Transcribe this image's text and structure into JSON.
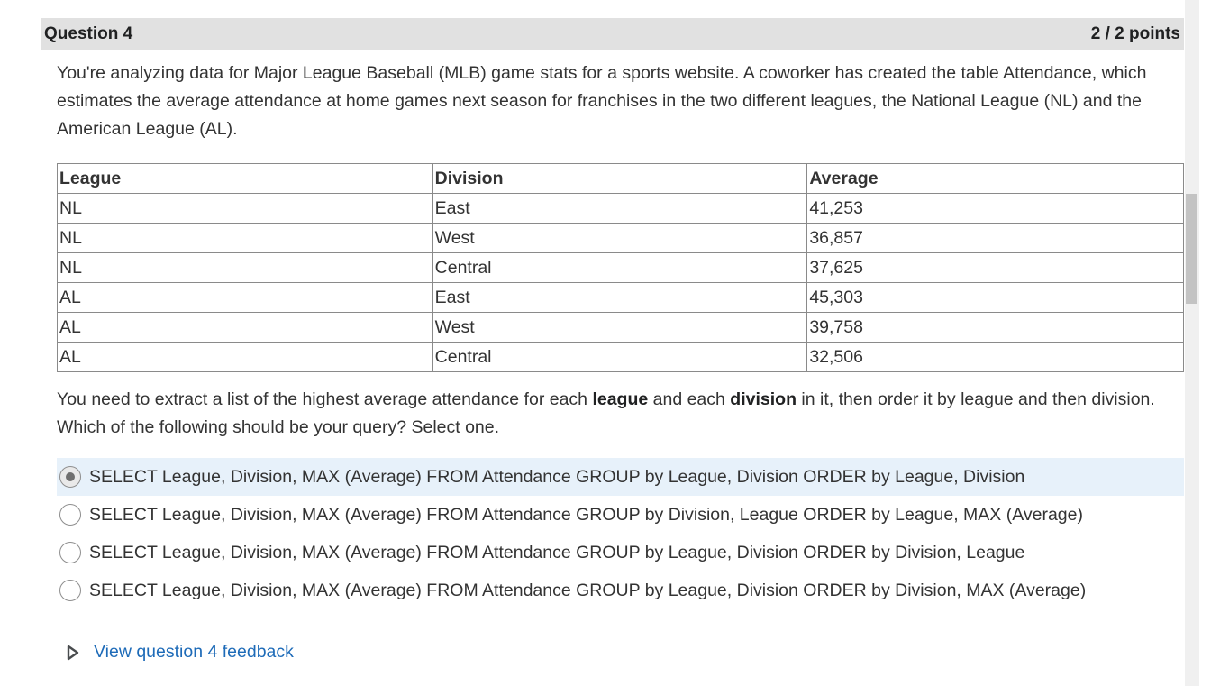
{
  "question": {
    "title": "Question 4",
    "points": "2 / 2 points",
    "prompt": "You're analyzing data for Major League Baseball (MLB) game stats for a sports website. A coworker has created the table Attendance, which estimates the average attendance at home games next season for franchises in the two different leagues, the National League (NL) and the American League (AL).",
    "table": {
      "headers": [
        "League",
        "Division",
        "Average"
      ],
      "rows": [
        [
          "NL",
          "East",
          "41,253"
        ],
        [
          "NL",
          "West",
          "36,857"
        ],
        [
          "NL",
          "Central",
          "37,625"
        ],
        [
          "AL",
          "East",
          "45,303"
        ],
        [
          "AL",
          "West",
          "39,758"
        ],
        [
          "AL",
          "Central",
          "32,506"
        ]
      ]
    },
    "instruction": {
      "part1": "You need to extract a list of the highest average attendance for each ",
      "bold1": "league",
      "part2": " and each ",
      "bold2": "division",
      "part3": " in it, then order it by league and then division. Which of the following should be your query? Select one."
    },
    "options": [
      {
        "label": "SELECT League, Division, MAX (Average) FROM Attendance GROUP by League, Division ORDER by League, Division",
        "selected": true
      },
      {
        "label": "SELECT League, Division, MAX (Average) FROM Attendance GROUP by Division, League ORDER by League, MAX (Average)",
        "selected": false
      },
      {
        "label": "SELECT League, Division, MAX (Average) FROM Attendance GROUP by League, Division ORDER by Division, League",
        "selected": false
      },
      {
        "label": "SELECT League, Division, MAX (Average) FROM Attendance GROUP by League, Division ORDER by Division, MAX (Average)",
        "selected": false
      }
    ],
    "feedback_link": "View question 4 feedback",
    "feedback_icon": "caret-right-icon"
  },
  "colors": {
    "header_bg": "#e1e1e1",
    "selected_bg": "#e7f1fa",
    "link": "#1e6bb8"
  }
}
